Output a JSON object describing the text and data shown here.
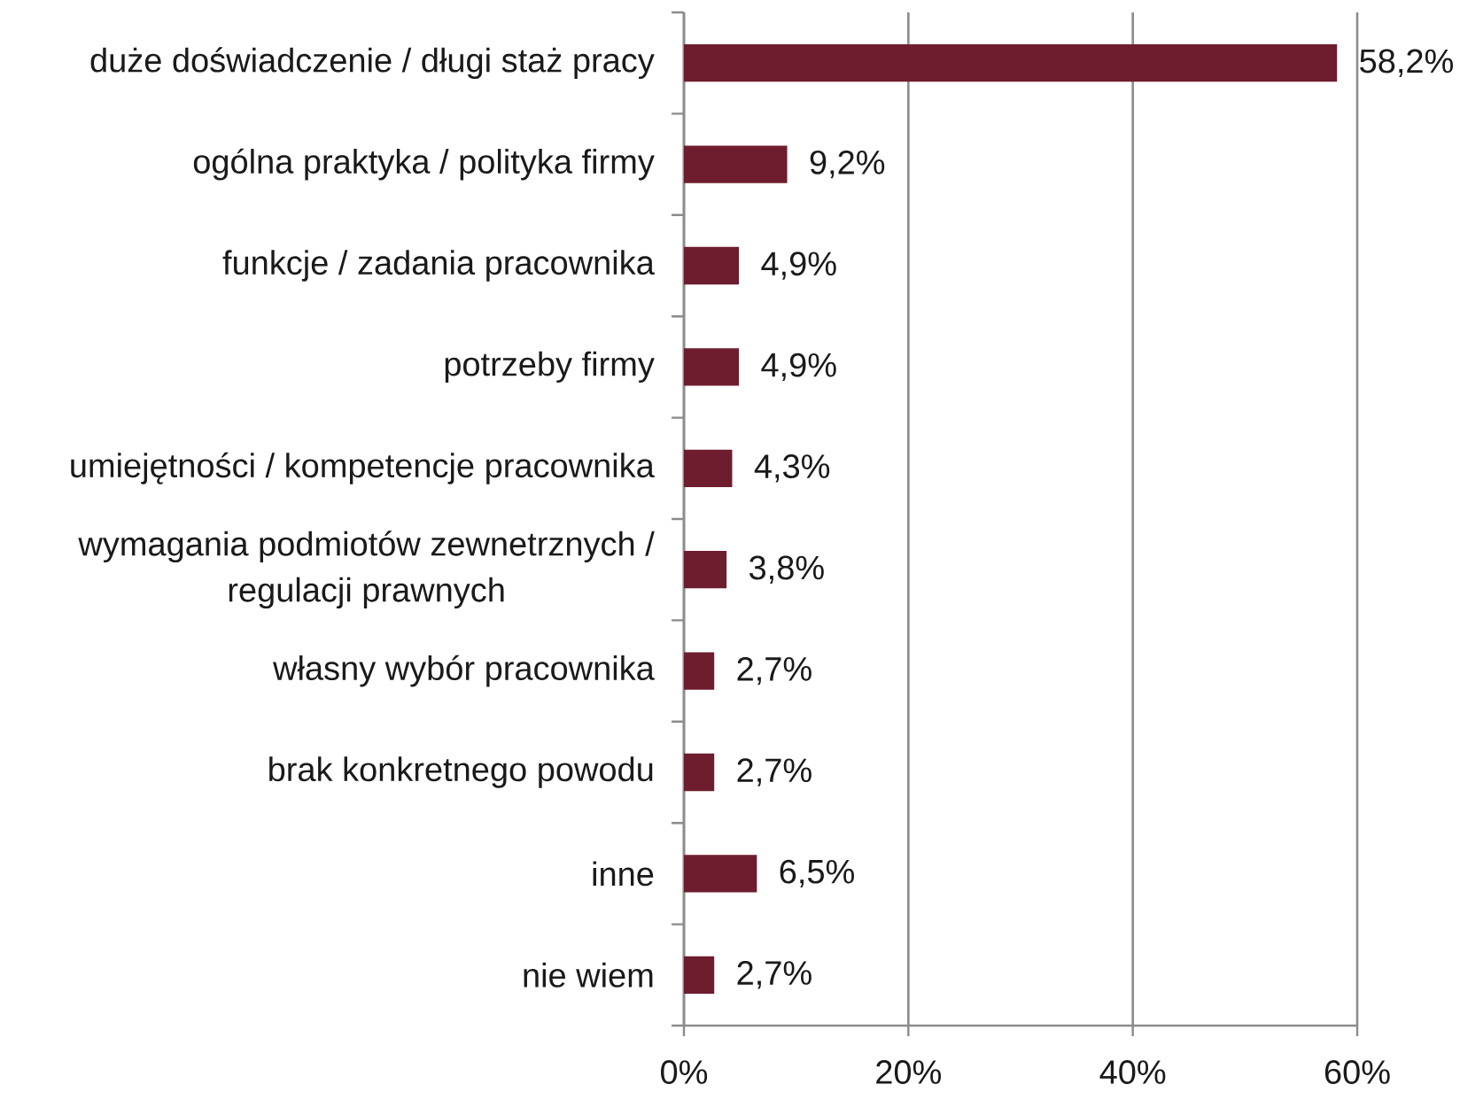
{
  "chart_data": {
    "type": "bar",
    "orientation": "horizontal",
    "categories": [
      "duże doświadczenie / długi staż pracy",
      "ogólna praktyka / polityka firmy",
      "funkcje / zadania pracownika",
      "potrzeby firmy",
      "umiejętności / kompetencje pracownika",
      "wymagania podmiotów zewnetrznych / regulacji prawnych",
      "własny wybór pracownika",
      "brak konkretnego powodu",
      "inne",
      "nie wiem"
    ],
    "values": [
      58.2,
      9.2,
      4.9,
      4.9,
      4.3,
      3.8,
      2.7,
      2.7,
      6.5,
      2.7
    ],
    "value_labels": [
      "58,2%",
      "9,2%",
      "4,9%",
      "4,9%",
      "4,3%",
      "3,8%",
      "2,7%",
      "2,7%",
      "6,5%",
      "2,7%"
    ],
    "color": "#6d1d2e",
    "xlim": [
      0,
      60
    ],
    "xticks": [
      {
        "value": 0,
        "label": "0%"
      },
      {
        "value": 20,
        "label": "20%"
      },
      {
        "value": 40,
        "label": "40%"
      },
      {
        "value": 60,
        "label": "60%"
      }
    ],
    "grid": "x"
  }
}
